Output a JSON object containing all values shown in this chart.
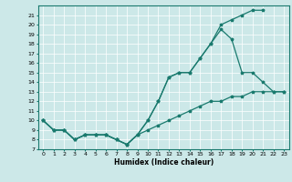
{
  "xlabel": "Humidex (Indice chaleur)",
  "bg_color": "#cce8e8",
  "line_color": "#1a7a6e",
  "xlim": [
    -0.5,
    23.5
  ],
  "ylim": [
    7,
    22
  ],
  "xticks": [
    0,
    1,
    2,
    3,
    4,
    5,
    6,
    7,
    8,
    9,
    10,
    11,
    12,
    13,
    14,
    15,
    16,
    17,
    18,
    19,
    20,
    21,
    22,
    23
  ],
  "yticks": [
    7,
    8,
    9,
    10,
    11,
    12,
    13,
    14,
    15,
    16,
    17,
    18,
    19,
    20,
    21
  ],
  "line1_x": [
    0,
    1,
    2,
    3,
    4,
    5,
    6,
    7,
    8,
    9,
    10,
    11,
    12,
    13,
    14,
    15,
    16,
    17,
    18,
    19,
    20,
    21
  ],
  "line1_y": [
    10,
    9,
    9,
    8,
    8.5,
    8.5,
    8.5,
    8,
    7.5,
    8.5,
    10,
    12,
    14.5,
    15,
    15,
    16.5,
    18,
    20,
    20.5,
    21,
    21.5,
    21.5
  ],
  "line2_x": [
    0,
    1,
    2,
    3,
    4,
    5,
    6,
    7,
    8,
    9,
    10,
    11,
    12,
    13,
    14,
    15,
    16,
    17,
    18,
    19,
    20,
    21,
    22,
    23
  ],
  "line2_y": [
    10,
    9,
    9,
    8,
    8.5,
    8.5,
    8.5,
    8,
    7.5,
    8.5,
    10,
    12,
    14.5,
    15,
    15,
    16.5,
    18,
    19.5,
    18.5,
    15,
    15,
    14,
    13,
    13
  ],
  "line3_x": [
    0,
    1,
    2,
    3,
    4,
    5,
    6,
    7,
    8,
    9,
    10,
    11,
    12,
    13,
    14,
    15,
    16,
    17,
    18,
    19,
    20,
    21,
    22,
    23
  ],
  "line3_y": [
    10,
    9,
    9,
    8,
    8.5,
    8.5,
    8.5,
    8,
    7.5,
    8.5,
    9,
    9.5,
    10,
    10.5,
    11,
    11.5,
    12,
    12,
    12.5,
    12.5,
    13,
    13,
    13,
    13
  ],
  "xlabel_fontsize": 5.5,
  "tick_fontsize": 4.5,
  "linewidth": 0.9,
  "markersize": 2.5
}
